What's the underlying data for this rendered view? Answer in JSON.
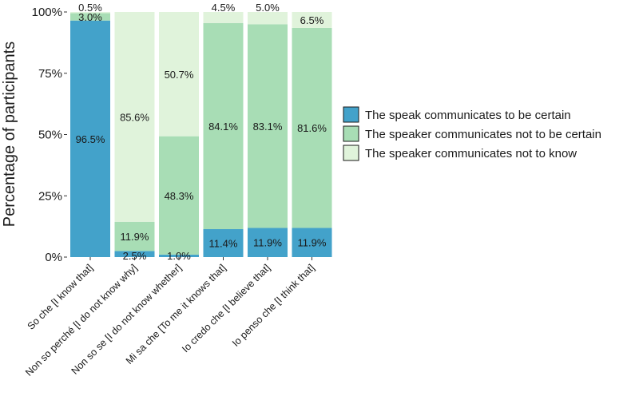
{
  "chart_data": {
    "type": "bar",
    "stacked": true,
    "title": "",
    "xlabel": "",
    "ylabel": "Percentage of participants",
    "ylim": [
      0,
      100
    ],
    "yticks": [
      "0%",
      "25%",
      "50%",
      "75%",
      "100%"
    ],
    "ytick_values": [
      0,
      25,
      50,
      75,
      100
    ],
    "categories": [
      "So che [I know that]",
      "Non so perché [I do not know why]",
      "Non so se [I do not know whether]",
      "Mi sa che [To me it knows that]",
      "Io credo che [I believe that]",
      "Io penso che [I think that]"
    ],
    "series": [
      {
        "name": "The speak communicates to be certain",
        "color": "#43a2ca",
        "values": [
          96.5,
          2.5,
          1.0,
          11.4,
          11.9,
          11.9
        ],
        "labels": [
          "96.5%",
          "2.5%",
          "1.0%",
          "11.4%",
          "11.9%",
          "11.9%"
        ]
      },
      {
        "name": "The speaker communicates not to be certain",
        "color": "#a8ddb5",
        "values": [
          3.0,
          11.9,
          48.3,
          84.1,
          83.1,
          81.6
        ],
        "labels": [
          "3.0%",
          "11.9%",
          "48.3%",
          "84.1%",
          "83.1%",
          "81.6%"
        ]
      },
      {
        "name": "The speaker communicates not to know",
        "color": "#e0f3db",
        "values": [
          0.5,
          85.6,
          50.7,
          4.5,
          5.0,
          6.5
        ],
        "labels": [
          "0.5%",
          "85.6%",
          "50.7%",
          "4.5%",
          "5.0%",
          "6.5%"
        ]
      }
    ],
    "legend_position": "right",
    "grid": false
  }
}
